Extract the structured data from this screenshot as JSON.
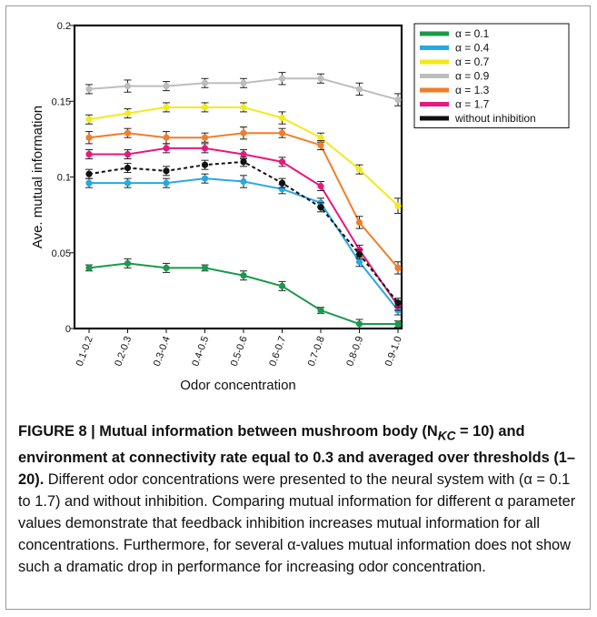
{
  "chart_data": {
    "type": "line",
    "title": "",
    "xlabel": "Odor concentration",
    "ylabel": "Ave. mutual information",
    "categories": [
      "0.1-0.2",
      "0.2-0.3",
      "0.3-0.4",
      "0.4-0.5",
      "0.5-0.6",
      "0.6-0.7",
      "0.7-0.8",
      "0.8-0.9",
      "0.9-1.0"
    ],
    "ylim": [
      0,
      0.2
    ],
    "yticks": [
      "0",
      "0.05",
      "0.1",
      "0.15",
      "0.2"
    ],
    "grid": false,
    "legend_position": "top-right",
    "series": [
      {
        "name": "α = 0.1",
        "color": "#1a9a4a",
        "dashed": false,
        "values": [
          0.04,
          0.043,
          0.04,
          0.04,
          0.035,
          0.028,
          0.012,
          0.003,
          0.003
        ],
        "errors": [
          0.002,
          0.003,
          0.003,
          0.002,
          0.003,
          0.003,
          0.002,
          0.003,
          0.002
        ]
      },
      {
        "name": "α = 0.4",
        "color": "#27a9e1",
        "dashed": false,
        "values": [
          0.096,
          0.096,
          0.096,
          0.099,
          0.097,
          0.092,
          0.083,
          0.044,
          0.012
        ],
        "errors": [
          0.003,
          0.003,
          0.003,
          0.003,
          0.004,
          0.003,
          0.003,
          0.003,
          0.003
        ]
      },
      {
        "name": "α = 0.7",
        "color": "#f2ea1c",
        "dashed": false,
        "values": [
          0.138,
          0.142,
          0.146,
          0.146,
          0.146,
          0.139,
          0.126,
          0.105,
          0.081
        ],
        "errors": [
          0.003,
          0.003,
          0.003,
          0.003,
          0.003,
          0.004,
          0.003,
          0.003,
          0.005
        ]
      },
      {
        "name": "α = 0.9",
        "color": "#bdbdbd",
        "dashed": false,
        "values": [
          0.158,
          0.16,
          0.16,
          0.162,
          0.162,
          0.165,
          0.165,
          0.158,
          0.151
        ],
        "errors": [
          0.003,
          0.004,
          0.003,
          0.003,
          0.003,
          0.004,
          0.003,
          0.004,
          0.004
        ]
      },
      {
        "name": "α = 1.3",
        "color": "#f07e2a",
        "dashed": false,
        "values": [
          0.126,
          0.129,
          0.126,
          0.126,
          0.129,
          0.129,
          0.121,
          0.07,
          0.04
        ],
        "errors": [
          0.004,
          0.003,
          0.004,
          0.003,
          0.004,
          0.003,
          0.003,
          0.004,
          0.004
        ]
      },
      {
        "name": "α = 1.7",
        "color": "#e6197e",
        "dashed": false,
        "values": [
          0.115,
          0.115,
          0.119,
          0.119,
          0.115,
          0.11,
          0.094,
          0.052,
          0.015
        ],
        "errors": [
          0.003,
          0.003,
          0.003,
          0.003,
          0.003,
          0.003,
          0.003,
          0.003,
          0.003
        ]
      },
      {
        "name": "without inhibition",
        "color": "#111111",
        "dashed": true,
        "values": [
          0.102,
          0.106,
          0.104,
          0.108,
          0.11,
          0.096,
          0.08,
          0.049,
          0.017
        ],
        "errors": [
          0.003,
          0.003,
          0.003,
          0.003,
          0.003,
          0.003,
          0.003,
          0.003,
          0.003
        ]
      }
    ]
  },
  "caption": {
    "title": "FIGURE 8 | Mutual information between mushroom body (N",
    "title_sub": "KC",
    "title_rest": " = 10) and environment at connectivity rate equal to 0.3 and averaged over thresholds (1–20).",
    "body": " Different odor concentrations were presented to the neural system with (α = 0.1 to 1.7) and without inhibition. Comparing mutual information for different α parameter values demonstrate that feedback inhibition increases mutual information for all concentrations. Furthermore, for several α-values mutual information does not show such a dramatic drop in performance for increasing odor concentration."
  }
}
